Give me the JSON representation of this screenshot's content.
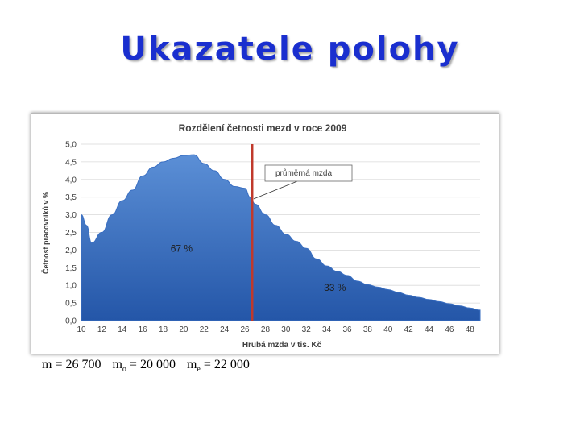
{
  "slide": {
    "title": "Ukazatele polohy"
  },
  "stats": {
    "mean_lhs": "m = 26 700",
    "mode_m": "m",
    "mode_sub": "o",
    "mode_rhs": " =  20 000",
    "median_m": "m",
    "median_sub": "e",
    "median_rhs": " = 22 000"
  },
  "chart_data": {
    "type": "area",
    "title": "Rozdělení četnosti mezd v roce 2009",
    "xlabel": "Hrubá mzda v  tis. Kč",
    "ylabel": "Četnost pracovníků v %",
    "xlim": [
      10,
      49
    ],
    "ylim": [
      0,
      5
    ],
    "x_ticks": [
      "10",
      "12",
      "14",
      "16",
      "18",
      "20",
      "22",
      "24",
      "26",
      "28",
      "30",
      "32",
      "34",
      "36",
      "38",
      "40",
      "42",
      "44",
      "46",
      "48"
    ],
    "y_ticks": [
      "0,0",
      "0,5",
      "1,0",
      "1,5",
      "2,0",
      "2,5",
      "3,0",
      "3,5",
      "4,0",
      "4,5",
      "5,0"
    ],
    "grid": true,
    "colors": {
      "area_top": "#5b8fd6",
      "area_bottom": "#2456a8",
      "mean_line": "#c0392b"
    },
    "series": [
      {
        "x": [
          10,
          10.5,
          11,
          12,
          13,
          14,
          15,
          16,
          17,
          18,
          19,
          20,
          21,
          22,
          23,
          24,
          25,
          26,
          26.5,
          27,
          28,
          29,
          30,
          31,
          32,
          33,
          34,
          35,
          36,
          37,
          38,
          39,
          40,
          41,
          42,
          43,
          44,
          45,
          46,
          47,
          48,
          49
        ],
        "y": [
          3.0,
          2.7,
          2.2,
          2.5,
          3.0,
          3.4,
          3.7,
          4.1,
          4.35,
          4.5,
          4.6,
          4.68,
          4.7,
          4.45,
          4.25,
          4.0,
          3.8,
          3.75,
          3.5,
          3.3,
          3.0,
          2.7,
          2.45,
          2.25,
          2.05,
          1.75,
          1.55,
          1.4,
          1.28,
          1.12,
          1.02,
          0.95,
          0.88,
          0.8,
          0.72,
          0.66,
          0.6,
          0.54,
          0.48,
          0.42,
          0.36,
          0.3
        ]
      }
    ],
    "mean_value": 26.7,
    "callout": "průměrná mzda",
    "share_left": "67 %",
    "share_right": "33 %"
  }
}
